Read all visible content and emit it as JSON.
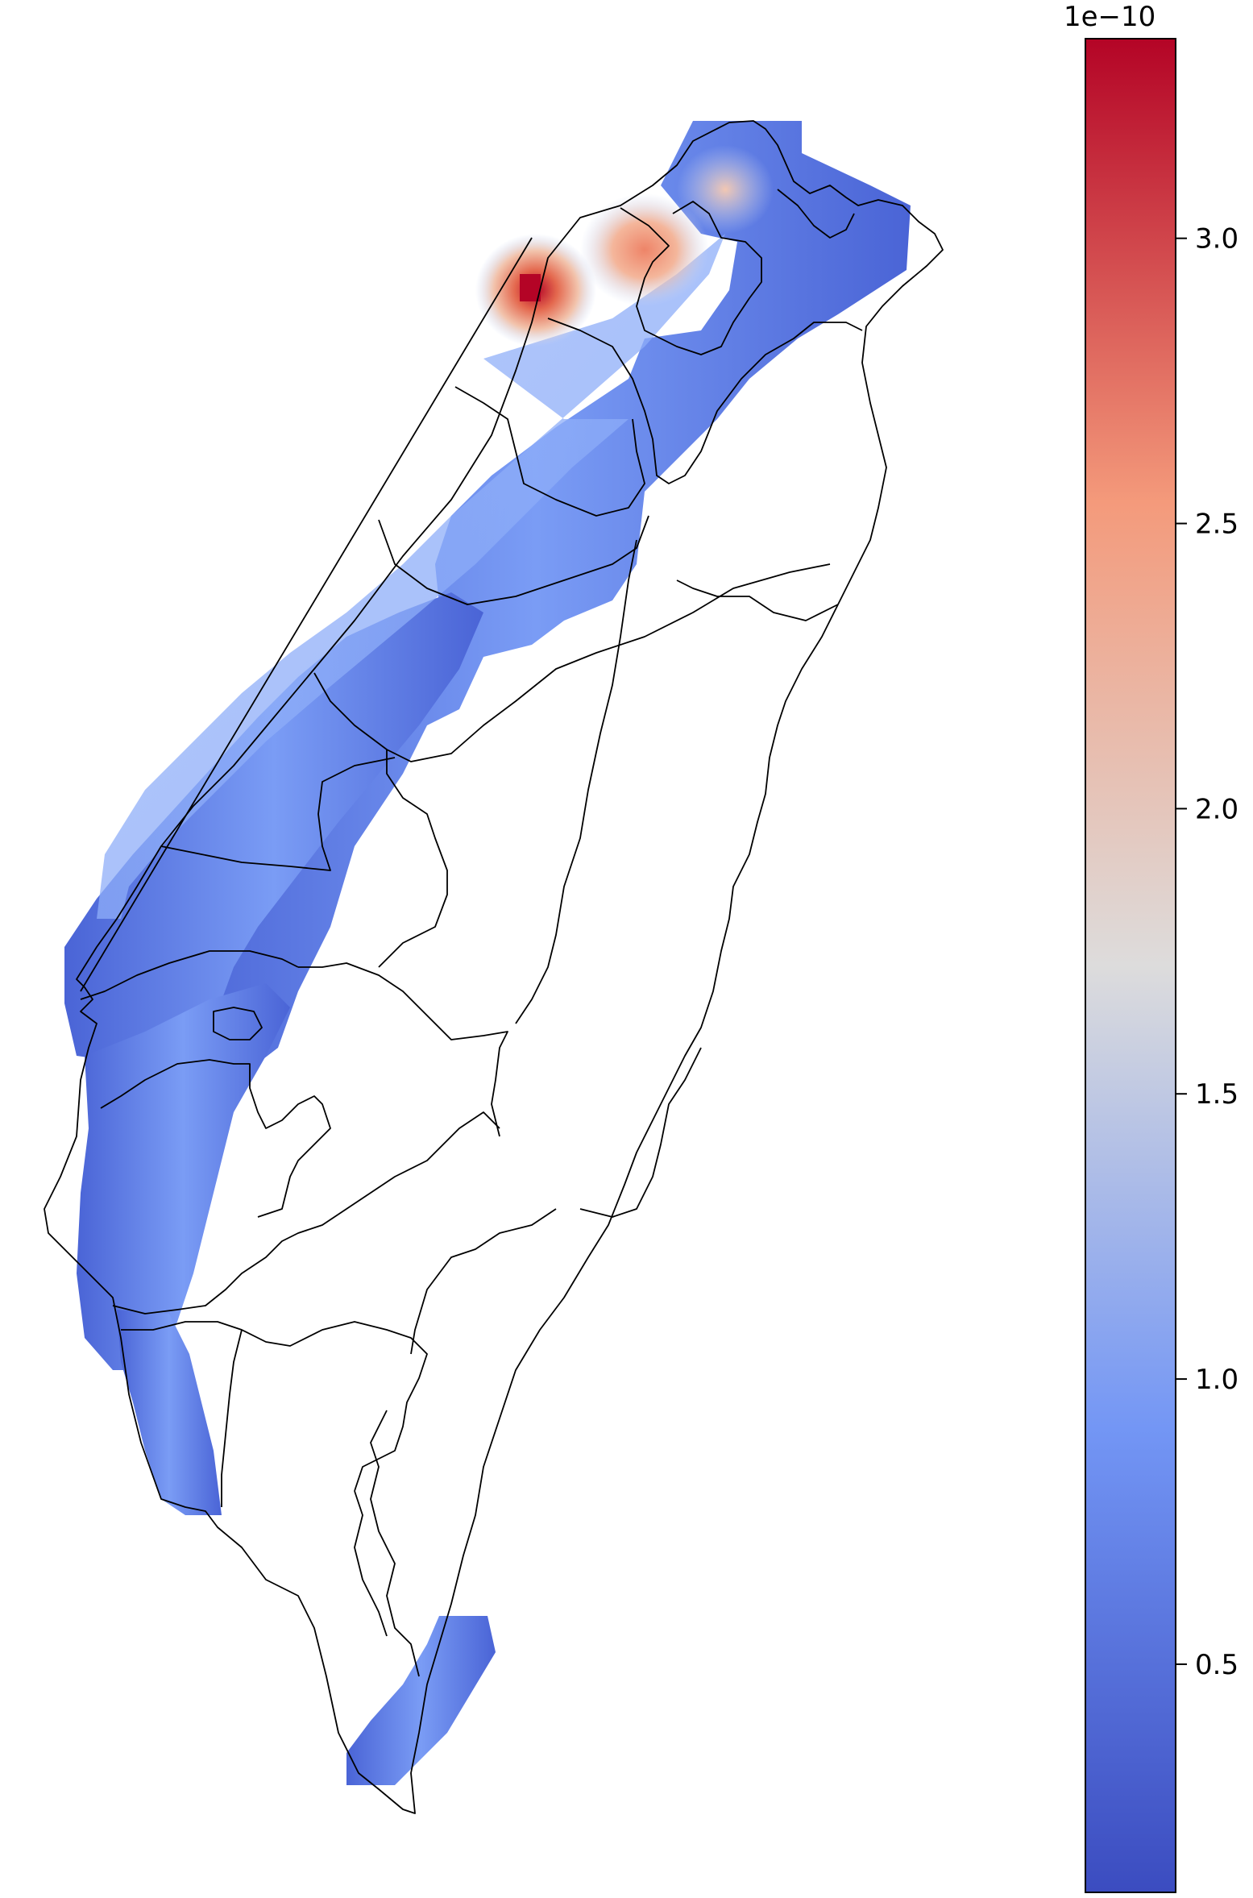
{
  "map": {
    "title": "",
    "colormap": "coolwarm",
    "colors": {
      "low": "#3b4cc0",
      "mid_low": "#7b9ff9",
      "mid": "#dddcdc",
      "mid_high": "#f49a7b",
      "high": "#b40426"
    },
    "hotspots": [
      {
        "location": "northwest coast (Taoyuan)",
        "value": 3.3
      },
      {
        "location": "north (Taipei basin)",
        "value": 2.7
      },
      {
        "location": "north (New Taipei)",
        "value": 2.4
      }
    ]
  },
  "colorbar": {
    "scale_label": "1e−10",
    "min": 0.1,
    "max": 3.35,
    "ticks": [
      {
        "value": 0.5,
        "label": "0.5"
      },
      {
        "value": 1.0,
        "label": "1.0"
      },
      {
        "value": 1.5,
        "label": "1.5"
      },
      {
        "value": 2.0,
        "label": "2.0"
      },
      {
        "value": 2.5,
        "label": "2.5"
      },
      {
        "value": 3.0,
        "label": "3.0"
      }
    ]
  }
}
